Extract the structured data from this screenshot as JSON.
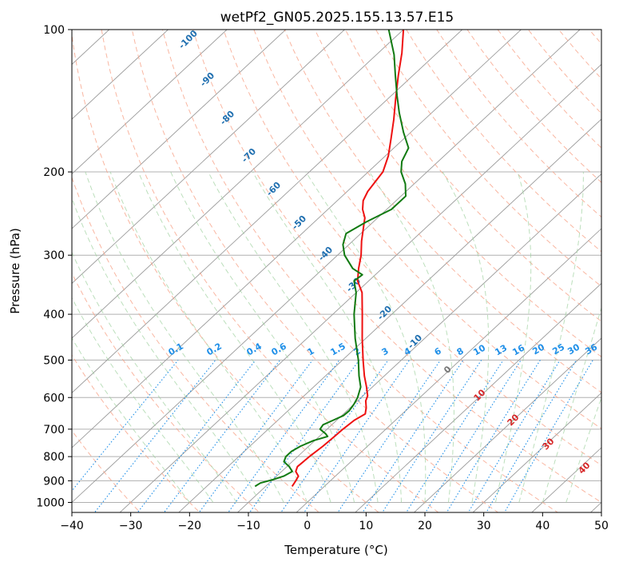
{
  "chart_data": {
    "type": "line",
    "title": "wetPf2_GN05.2025.155.13.57.E15",
    "xlabel": "Temperature (°C)",
    "ylabel": "Pressure (hPa)",
    "xlim": [
      -40,
      50
    ],
    "ylim": [
      1050,
      100
    ],
    "y_scale": "log",
    "x_ticks": [
      "−40",
      "−30",
      "−20",
      "−10",
      "0",
      "10",
      "20",
      "30",
      "40",
      "50"
    ],
    "x_tick_values": [
      -40,
      -30,
      -20,
      -10,
      0,
      10,
      20,
      30,
      40,
      50
    ],
    "y_ticks": [
      "1000",
      "900",
      "800",
      "700",
      "600",
      "500",
      "400",
      "300",
      "200",
      "100"
    ],
    "y_tick_values": [
      1000,
      900,
      800,
      700,
      600,
      500,
      400,
      300,
      200,
      100
    ],
    "series": [
      {
        "color": "#ee1111",
        "points": [
          [
            925,
            -5.5
          ],
          [
            900,
            -5.9
          ],
          [
            880,
            -6.3
          ],
          [
            860,
            -7.6
          ],
          [
            840,
            -8.2
          ],
          [
            800,
            -8.0
          ],
          [
            760,
            -7.6
          ],
          [
            720,
            -7.4
          ],
          [
            700,
            -7.3
          ],
          [
            670,
            -7.0
          ],
          [
            650,
            -6.3
          ],
          [
            630,
            -7.3
          ],
          [
            610,
            -8.6
          ],
          [
            595,
            -9.2
          ],
          [
            570,
            -11.0
          ],
          [
            540,
            -13.4
          ],
          [
            500,
            -16.5
          ],
          [
            450,
            -20.6
          ],
          [
            400,
            -25.0
          ],
          [
            360,
            -29.0
          ],
          [
            340,
            -31.9
          ],
          [
            320,
            -34.0
          ],
          [
            300,
            -36.0
          ],
          [
            280,
            -38.5
          ],
          [
            265,
            -40.3
          ],
          [
            250,
            -42.2
          ],
          [
            240,
            -44.1
          ],
          [
            230,
            -45.6
          ],
          [
            220,
            -46.5
          ],
          [
            210,
            -47.0
          ],
          [
            200,
            -47.5
          ],
          [
            185,
            -49.5
          ],
          [
            170,
            -52.2
          ],
          [
            155,
            -55.2
          ],
          [
            140,
            -58.7
          ],
          [
            125,
            -62.5
          ],
          [
            112,
            -66.0
          ],
          [
            100,
            -70.0
          ]
        ]
      },
      {
        "color": "#117a11",
        "points": [
          [
            925,
            -11.8
          ],
          [
            910,
            -11.5
          ],
          [
            895,
            -10.0
          ],
          [
            880,
            -8.8
          ],
          [
            860,
            -8.2
          ],
          [
            840,
            -9.6
          ],
          [
            820,
            -11.4
          ],
          [
            800,
            -12.0
          ],
          [
            780,
            -12.0
          ],
          [
            760,
            -11.4
          ],
          [
            740,
            -10.2
          ],
          [
            725,
            -8.6
          ],
          [
            715,
            -9.5
          ],
          [
            700,
            -11.2
          ],
          [
            685,
            -11.5
          ],
          [
            670,
            -10.6
          ],
          [
            655,
            -9.7
          ],
          [
            640,
            -9.6
          ],
          [
            620,
            -10.0
          ],
          [
            600,
            -10.6
          ],
          [
            570,
            -12.0
          ],
          [
            540,
            -14.3
          ],
          [
            500,
            -17.3
          ],
          [
            450,
            -21.8
          ],
          [
            400,
            -26.4
          ],
          [
            360,
            -30.0
          ],
          [
            340,
            -32.5
          ],
          [
            330,
            -32.2
          ],
          [
            320,
            -35.0
          ],
          [
            300,
            -38.8
          ],
          [
            285,
            -41.0
          ],
          [
            270,
            -42.5
          ],
          [
            255,
            -41.2
          ],
          [
            240,
            -39.2
          ],
          [
            225,
            -39.2
          ],
          [
            212,
            -41.5
          ],
          [
            200,
            -44.4
          ],
          [
            190,
            -46.2
          ],
          [
            178,
            -47.5
          ],
          [
            165,
            -51.2
          ],
          [
            150,
            -55.5
          ],
          [
            138,
            -59.0
          ],
          [
            125,
            -63.0
          ],
          [
            113,
            -67.0
          ],
          [
            100,
            -72.5
          ]
        ]
      }
    ],
    "mixing_ratio_labels": [
      "0.1",
      "0.2",
      "0.4",
      "0.6",
      "1",
      "1.5",
      "2",
      "3",
      "4",
      "6",
      "8",
      "10",
      "13",
      "16",
      "20",
      "25",
      "30",
      "36"
    ],
    "dry_adiabat_labels": [
      "-100",
      "-90",
      "-80",
      "-70",
      "-60",
      "-50",
      "-40",
      "-30",
      "-20",
      "-10"
    ],
    "moist_adiabat_labels": [
      "0",
      "10",
      "20",
      "30",
      "40"
    ],
    "grid": true
  }
}
